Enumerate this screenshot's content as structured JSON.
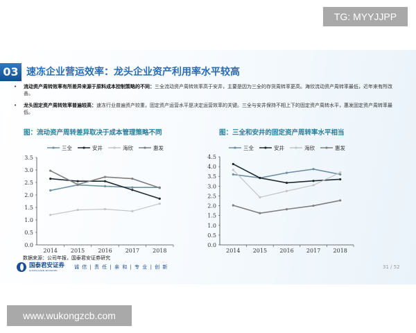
{
  "slide": {
    "section_number": "03",
    "title": "速冻企业营运效率：龙头企业资产利用率水平较高",
    "bullets": [
      {
        "bold": "流动资产周转效率有所差异来源于原料成本控制策略的不同：",
        "text": "三全流动资产周转效率高于安井，主要是因为三全的存货周转率更高。海欣流动资产周转率最低，近年来有所改善。"
      },
      {
        "bold": "龙头固定资产周转效率普遍较高：",
        "text": "速冻行业普遍资产较重，固定资产运营水平是决定运营效率的关键。三全与安井保持不相上下的固定资产周转水平，惠发固定资产周转率最低。"
      }
    ],
    "source": "数据来源：公司年报，国泰君安证券研究",
    "logo": {
      "name": "国泰君安证券",
      "en": "GUOTAI JUNAN SECURITIES",
      "motto": "诚 信 | 责 任 | 亲 和 | 专 业 | 创 新"
    },
    "page": "31 / 52"
  },
  "watermarks": {
    "top": "TG: MYYJJPP",
    "bottom": "www.wukongzcb.com"
  },
  "chart_data": [
    {
      "type": "line",
      "title": "图：流动资产周转差异取决于成本管理策略不同",
      "categories": [
        "2014",
        "2015",
        "2016",
        "2017",
        "2018"
      ],
      "ylim": [
        0,
        3.5
      ],
      "yticks": [
        "0.0",
        "0.5",
        "1.0",
        "1.5",
        "2.0",
        "2.5",
        "3.0",
        "3.5"
      ],
      "legend_position": "top",
      "grid": false,
      "series": [
        {
          "name": "三全",
          "color": "#6e8fa2",
          "values": [
            2.18,
            2.4,
            2.35,
            2.3,
            2.3
          ]
        },
        {
          "name": "安井",
          "color": "#1e2a33",
          "values": [
            2.65,
            2.55,
            2.55,
            2.2,
            1.85
          ]
        },
        {
          "name": "海欣",
          "color": "#c4c4c4",
          "values": [
            1.2,
            1.4,
            1.43,
            1.35,
            1.65
          ]
        },
        {
          "name": "惠发",
          "color": "#7f7f7f",
          "values": [
            2.97,
            2.42,
            2.72,
            2.65,
            2.28
          ]
        }
      ]
    },
    {
      "type": "line",
      "title": "图：三全和安井的固定资产周转率水平相当",
      "categories": [
        "2014",
        "2015",
        "2016",
        "2017",
        "2018"
      ],
      "ylim": [
        0,
        4.5
      ],
      "yticks": [
        "0.0",
        "0.5",
        "1.0",
        "1.5",
        "2.0",
        "2.5",
        "3.0",
        "3.5",
        "4.0",
        "4.5"
      ],
      "legend_position": "top",
      "grid": false,
      "series": [
        {
          "name": "三全",
          "color": "#6e8fa2",
          "values": [
            3.6,
            3.42,
            3.68,
            3.87,
            3.6
          ]
        },
        {
          "name": "安井",
          "color": "#1e2a33",
          "values": [
            4.13,
            3.42,
            3.17,
            3.27,
            3.35
          ]
        },
        {
          "name": "海欣",
          "color": "#c4c4c4",
          "values": [
            3.83,
            2.43,
            2.75,
            3.05,
            3.7
          ]
        },
        {
          "name": "惠发",
          "color": "#7f7f7f",
          "values": [
            2.02,
            1.62,
            1.82,
            2.0,
            2.27
          ]
        }
      ]
    }
  ]
}
